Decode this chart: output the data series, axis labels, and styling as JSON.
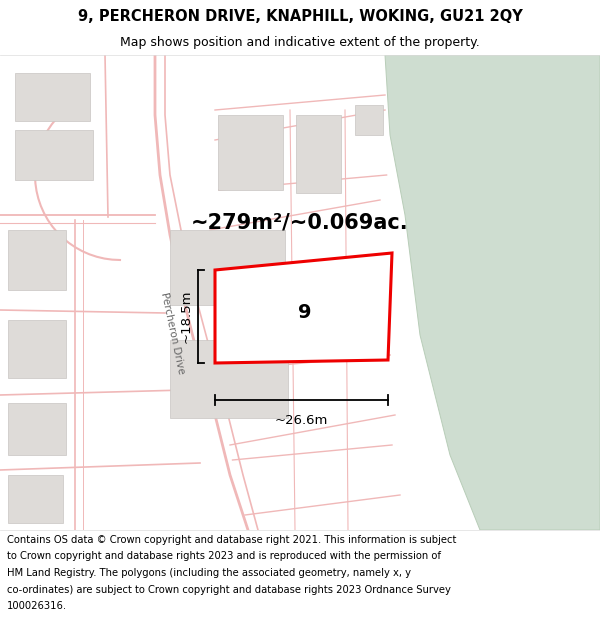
{
  "title": "9, PERCHERON DRIVE, KNAPHILL, WOKING, GU21 2QY",
  "subtitle": "Map shows position and indicative extent of the property.",
  "area_text": "~279m²/~0.069ac.",
  "number_label": "9",
  "dim_width": "~26.6m",
  "dim_height": "~18.5m",
  "road_label": "Percheron Drive",
  "copyright_lines": [
    "Contains OS data © Crown copyright and database right 2021. This information is subject",
    "to Crown copyright and database rights 2023 and is reproduced with the permission of",
    "HM Land Registry. The polygons (including the associated geometry, namely x, y",
    "co-ordinates) are subject to Crown copyright and database rights 2023 Ordnance Survey",
    "100026316."
  ],
  "map_bg": "#eeece8",
  "green_color": "#ceddd0",
  "road_color": "#f0b8b8",
  "plot_edge_color": "#ee0000",
  "building_color": "#dedbd8",
  "building_edge": "#c8c5c2",
  "title_fontsize": 10.5,
  "subtitle_fontsize": 9,
  "area_fontsize": 15,
  "label_fontsize": 14,
  "dim_fontsize": 9.5,
  "copyright_fontsize": 7.2,
  "road_label_fontsize": 7.5,
  "road_lw": 1.2,
  "plot_lw": 2.2
}
